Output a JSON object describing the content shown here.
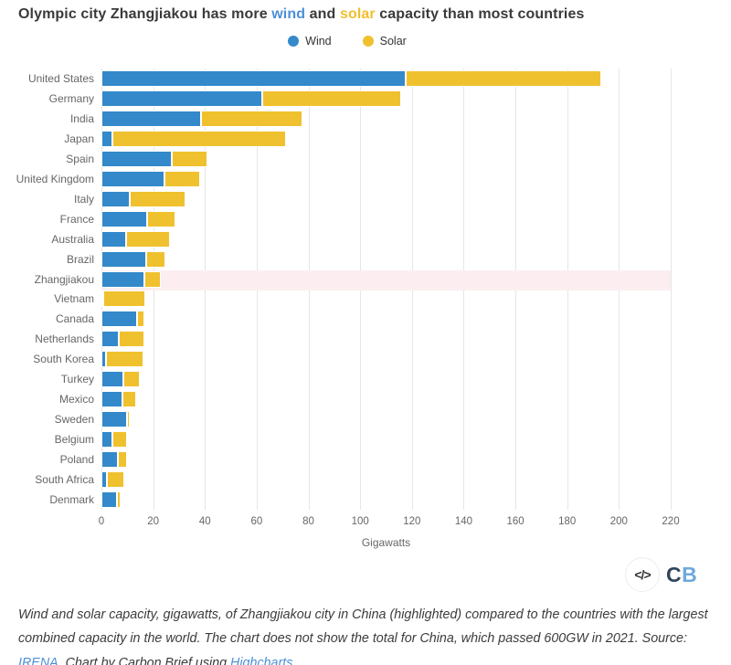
{
  "title": {
    "prefix": "Olympic city Zhangjiakou has more ",
    "wind_word": "wind",
    "and_word": " and ",
    "solar_word": "solar",
    "suffix": " capacity than most countries"
  },
  "legend": [
    {
      "label": "Wind",
      "color": "#3389ca"
    },
    {
      "label": "Solar",
      "color": "#f0c12e"
    }
  ],
  "chart_data": {
    "type": "bar",
    "orientation": "horizontal",
    "stacked": true,
    "categories": [
      "United States",
      "Germany",
      "India",
      "Japan",
      "Spain",
      "United Kingdom",
      "Italy",
      "France",
      "Australia",
      "Brazil",
      "Zhangjiakou",
      "Vietnam",
      "Canada",
      "Netherlands",
      "South Korea",
      "Turkey",
      "Mexico",
      "Sweden",
      "Belgium",
      "Poland",
      "South Africa",
      "Denmark"
    ],
    "series": [
      {
        "name": "Wind",
        "color": "#3389ca",
        "values": [
          117.7,
          62.2,
          38.6,
          4.4,
          27.1,
          24.5,
          10.9,
          17.5,
          9.5,
          17.2,
          16.5,
          0.6,
          13.6,
          6.6,
          1.6,
          8.5,
          8.0,
          10.0,
          4.4,
          6.5,
          2.2,
          6.0
        ]
      },
      {
        "name": "Solar",
        "color": "#f0c12e",
        "values": [
          75.6,
          53.8,
          39.0,
          67.0,
          14.0,
          13.5,
          21.7,
          11.2,
          17.1,
          7.4,
          6.5,
          16.4,
          3.0,
          9.9,
          14.6,
          6.5,
          5.6,
          1.1,
          5.6,
          3.5,
          6.5,
          1.3
        ]
      }
    ],
    "highlighted_category": "Zhangjiakou",
    "highlight_color": "#fceef0",
    "xlabel": "Gigawatts",
    "xlim": [
      0,
      220
    ],
    "xticks": [
      0,
      20,
      40,
      60,
      80,
      100,
      120,
      140,
      160,
      180,
      200,
      220
    ],
    "grid": true,
    "legend_position": "top"
  },
  "logo": {
    "code_icon": "</>",
    "c_letter": "C",
    "b_letter": "B"
  },
  "footer": {
    "part1": "Wind and solar capacity, gigawatts, of Zhangjiakou city in China (highlighted) compared to the countries with the largest combined capacity in the world. The chart does not show the total for China, which passed 600GW in 2021. Source: ",
    "irena_link": "IRENA",
    "part2": ". Chart by Carbon Brief using ",
    "highcharts_link": "Highcharts",
    "part3": "."
  }
}
